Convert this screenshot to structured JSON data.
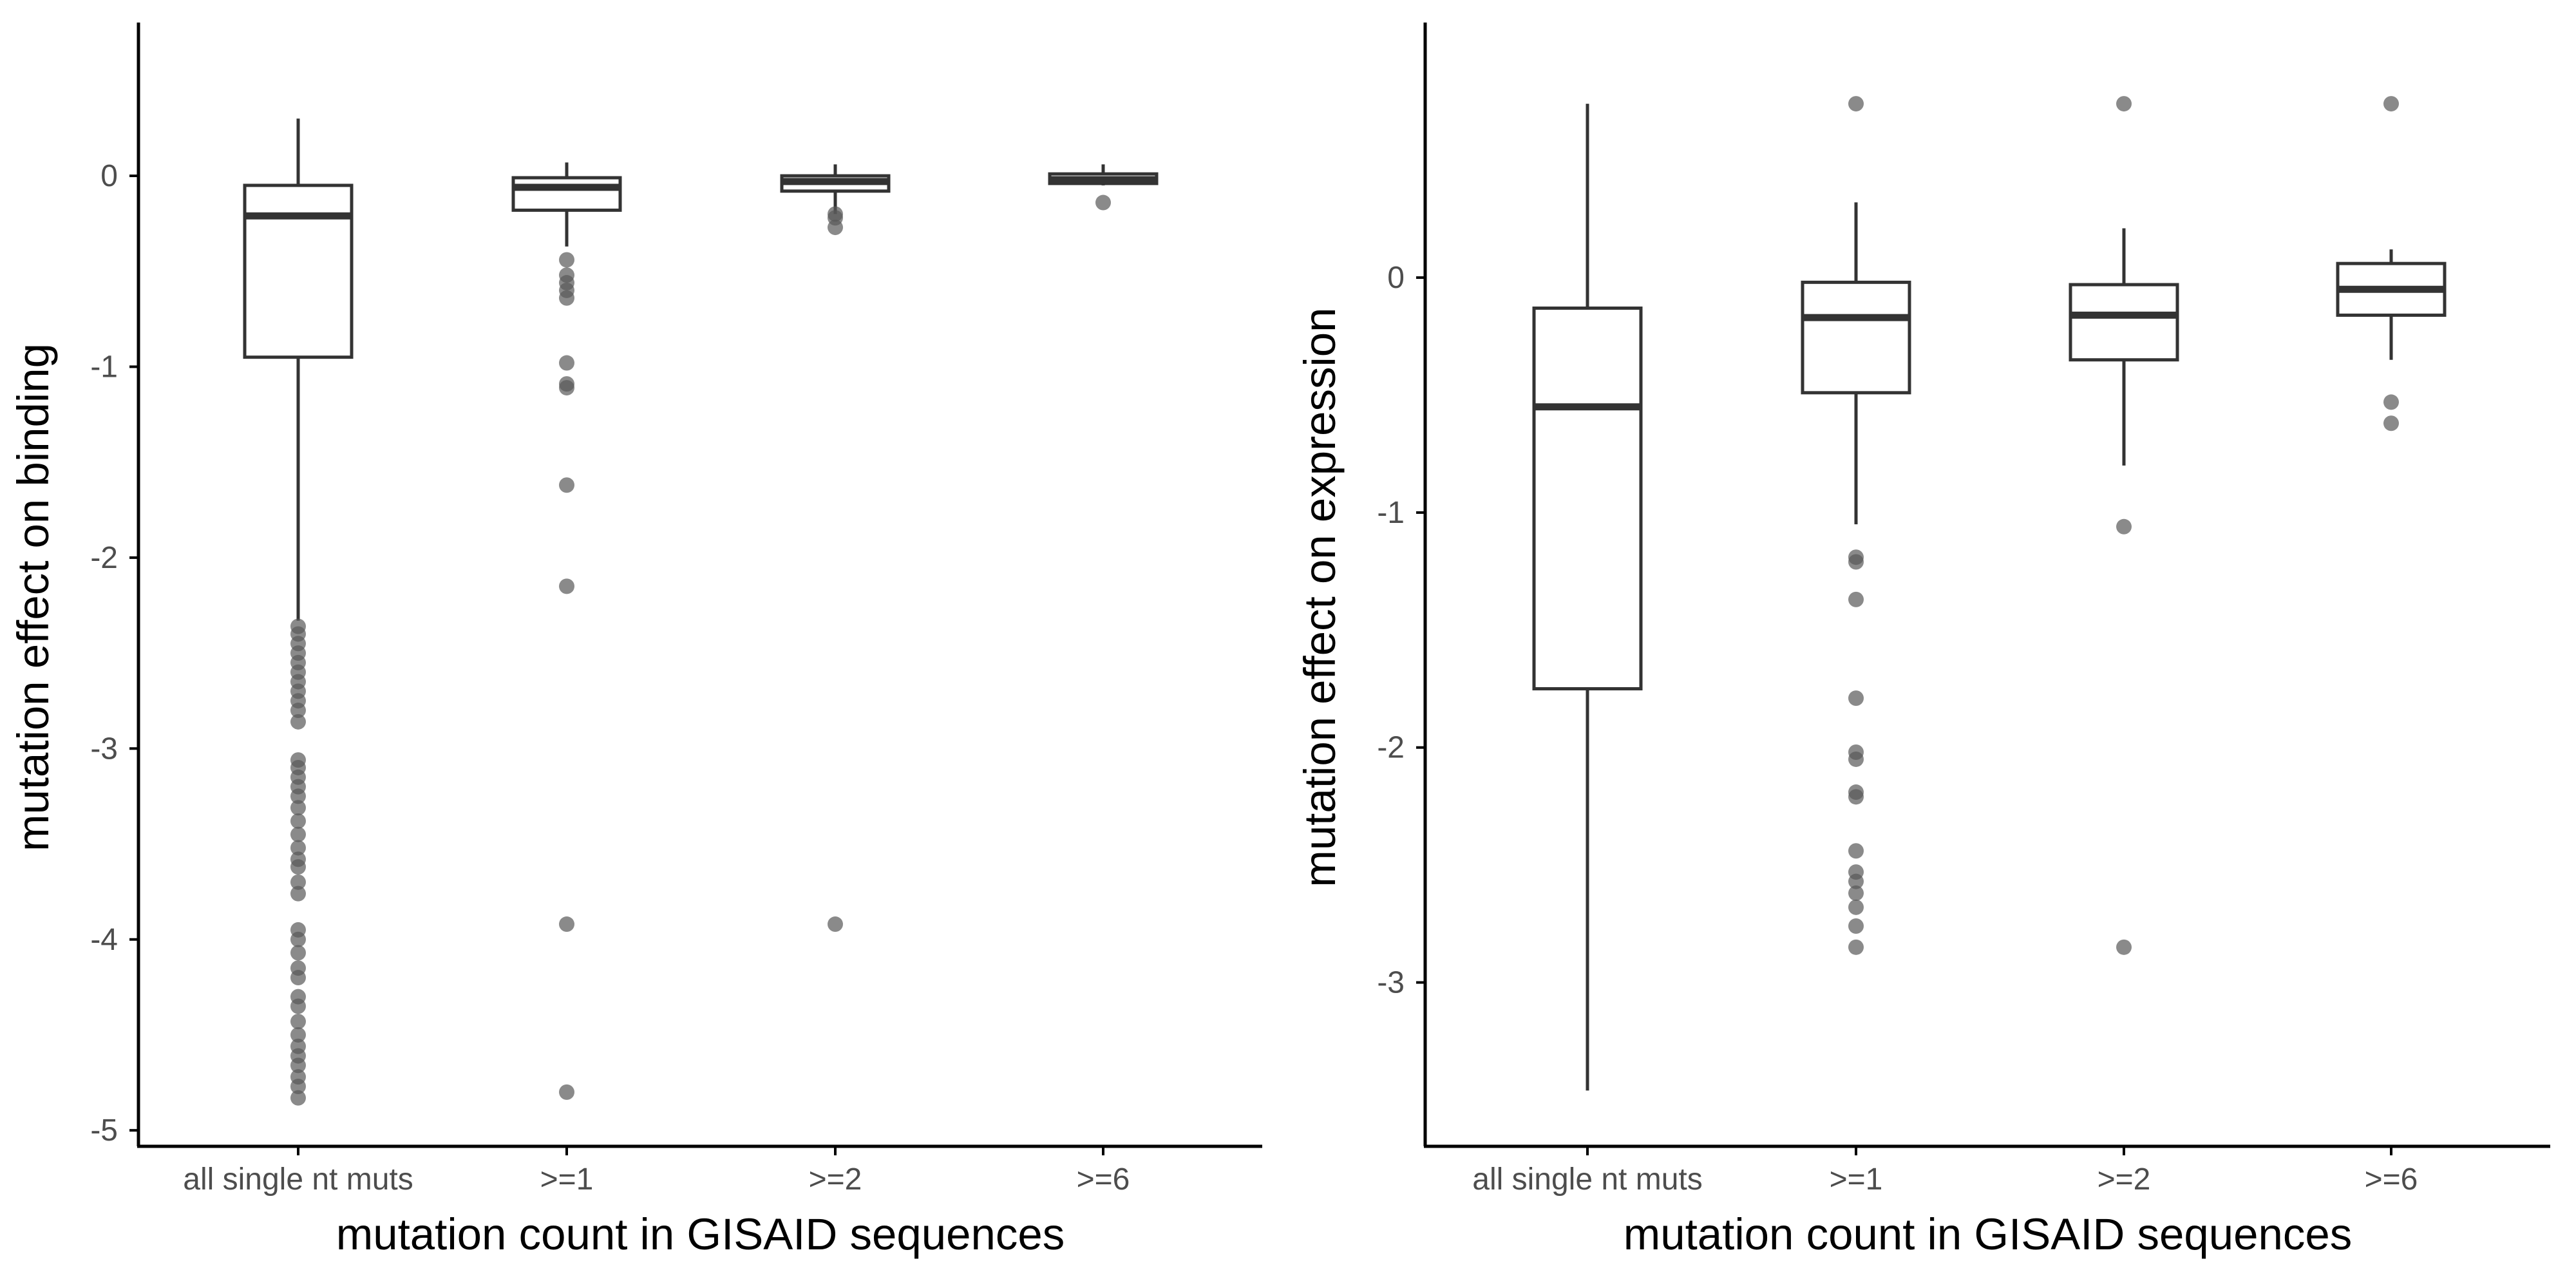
{
  "colors": {
    "axis": "#000000",
    "box_stroke": "#333333",
    "median": "#333333",
    "outlier": "#595959",
    "tick_text": "#4d4d4d",
    "background": "#ffffff"
  },
  "chart_data": [
    {
      "type": "box",
      "xlabel": "mutation count in GISAID sequences",
      "ylabel": "mutation effect on binding",
      "ylim": [
        -5.05,
        0.55
      ],
      "yticks": [
        0,
        -1,
        -2,
        -3,
        -4,
        -5
      ],
      "categories": [
        "all single nt muts",
        ">=1",
        ">=2",
        ">=6"
      ],
      "boxes": [
        {
          "category": "all single nt muts",
          "q1": -0.95,
          "median": -0.21,
          "q3": -0.05,
          "whisker_low": -2.33,
          "whisker_high": 0.3,
          "outliers": [
            -2.36,
            -2.4,
            -2.45,
            -2.5,
            -2.55,
            -2.6,
            -2.65,
            -2.7,
            -2.75,
            -2.8,
            -2.86,
            -3.06,
            -3.1,
            -3.15,
            -3.2,
            -3.25,
            -3.31,
            -3.38,
            -3.45,
            -3.52,
            -3.58,
            -3.62,
            -3.7,
            -3.76,
            -3.95,
            -4.0,
            -4.07,
            -4.15,
            -4.2,
            -4.3,
            -4.35,
            -4.43,
            -4.5,
            -4.56,
            -4.61,
            -4.66,
            -4.72,
            -4.77,
            -4.83
          ]
        },
        {
          "category": ">=1",
          "q1": -0.18,
          "median": -0.06,
          "q3": -0.01,
          "whisker_low": -0.37,
          "whisker_high": 0.07,
          "outliers": [
            -0.44,
            -0.52,
            -0.56,
            -0.6,
            -0.64,
            -0.98,
            -1.09,
            -1.11,
            -1.62,
            -2.15,
            -3.92,
            -4.8
          ]
        },
        {
          "category": ">=2",
          "q1": -0.08,
          "median": -0.03,
          "q3": 0.0,
          "whisker_low": -0.2,
          "whisker_high": 0.06,
          "outliers": [
            -0.2,
            -0.22,
            -0.27,
            -3.92
          ]
        },
        {
          "category": ">=6",
          "q1": -0.04,
          "median": -0.02,
          "q3": 0.01,
          "whisker_low": -0.05,
          "whisker_high": 0.06,
          "outliers": [
            -0.14
          ]
        }
      ]
    },
    {
      "type": "box",
      "xlabel": "mutation count in GISAID sequences",
      "ylabel": "mutation effect on expression",
      "ylim": [
        -3.67,
        0.88
      ],
      "yticks": [
        0,
        -1,
        -2,
        -3
      ],
      "categories": [
        "all single nt muts",
        ">=1",
        ">=2",
        ">=6"
      ],
      "boxes": [
        {
          "category": "all single nt muts",
          "q1": -1.75,
          "median": -0.55,
          "q3": -0.13,
          "whisker_low": -3.46,
          "whisker_high": 0.74,
          "outliers": []
        },
        {
          "category": ">=1",
          "q1": -0.49,
          "median": -0.17,
          "q3": -0.02,
          "whisker_low": -1.05,
          "whisker_high": 0.32,
          "outliers": [
            0.74,
            -1.19,
            -1.21,
            -1.37,
            -1.79,
            -2.02,
            -2.05,
            -2.19,
            -2.21,
            -2.44,
            -2.53,
            -2.57,
            -2.62,
            -2.68,
            -2.76,
            -2.85
          ]
        },
        {
          "category": ">=2",
          "q1": -0.35,
          "median": -0.16,
          "q3": -0.03,
          "whisker_low": -0.8,
          "whisker_high": 0.21,
          "outliers": [
            0.74,
            -1.06,
            -2.85
          ]
        },
        {
          "category": ">=6",
          "q1": -0.16,
          "median": -0.05,
          "q3": 0.06,
          "whisker_low": -0.35,
          "whisker_high": 0.12,
          "outliers": [
            0.74,
            -0.53,
            -0.62
          ]
        }
      ]
    }
  ]
}
